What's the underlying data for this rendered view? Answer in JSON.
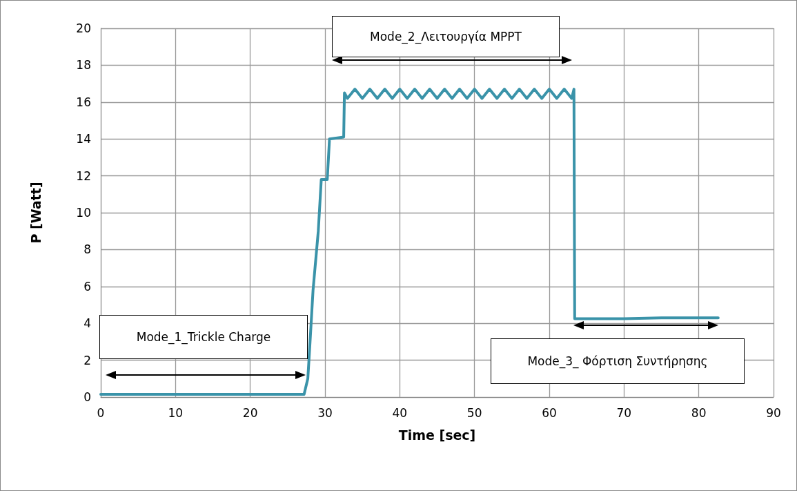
{
  "chart_data": {
    "type": "line",
    "xlabel": "Time [sec]",
    "ylabel": "P [Watt]",
    "xlim": [
      0,
      90
    ],
    "xticks": [
      0,
      10,
      20,
      30,
      40,
      50,
      60,
      70,
      80,
      90
    ],
    "ylim": [
      0,
      20
    ],
    "yticks": [
      0,
      2,
      4,
      6,
      8,
      10,
      12,
      14,
      16,
      18,
      20
    ],
    "grid": true,
    "marker": "none",
    "line_style": "solid",
    "series": [
      {
        "color": "#3a93a9",
        "x": [
          0,
          5,
          10,
          15,
          20,
          25,
          27.2,
          27.7,
          28.0,
          28.4,
          29.1,
          29.5,
          30.3,
          30.6,
          32.5,
          32.6,
          33,
          34,
          35,
          36,
          37,
          38,
          39,
          40,
          41,
          42,
          43,
          44,
          45,
          46,
          47,
          48,
          49,
          50,
          51,
          52,
          53,
          54,
          55,
          56,
          57,
          58,
          59,
          60,
          61,
          62,
          63,
          63.3,
          63.4,
          70,
          75,
          82.6
        ],
        "values": [
          0.15,
          0.15,
          0.15,
          0.15,
          0.15,
          0.15,
          0.15,
          1.0,
          3.0,
          5.8,
          9.0,
          11.8,
          11.8,
          14.0,
          14.1,
          16.5,
          16.2,
          16.7,
          16.2,
          16.7,
          16.2,
          16.7,
          16.2,
          16.7,
          16.2,
          16.7,
          16.2,
          16.7,
          16.2,
          16.7,
          16.2,
          16.7,
          16.2,
          16.7,
          16.2,
          16.7,
          16.2,
          16.7,
          16.2,
          16.7,
          16.2,
          16.7,
          16.2,
          16.7,
          16.2,
          16.7,
          16.2,
          16.7,
          4.25,
          4.25,
          4.3,
          4.3
        ]
      }
    ],
    "annotations": [
      "Mode_1_Trickle Charge",
      "Mode_2_Λειτουργία MPPT",
      "Mode_3_ Φόρτιση Συντήρησης"
    ]
  }
}
